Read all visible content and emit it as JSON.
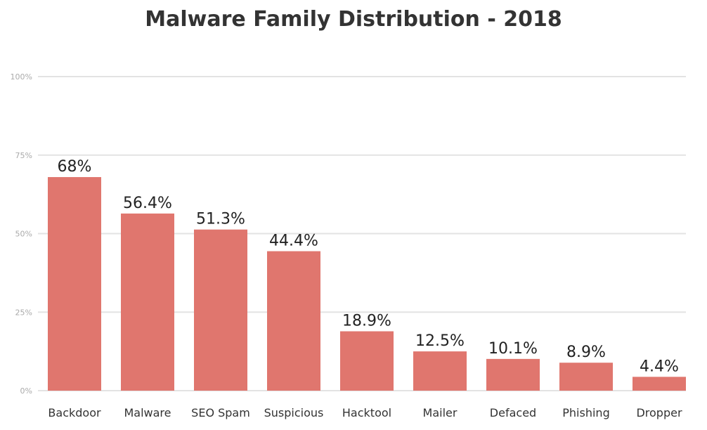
{
  "chart_data": {
    "type": "bar",
    "title": "Malware Family Distribution - 2018",
    "xlabel": "",
    "ylabel": "",
    "categories": [
      "Backdoor",
      "Malware",
      "SEO Spam",
      "Suspicious",
      "Hacktool",
      "Mailer",
      "Defaced",
      "Phishing",
      "Dropper"
    ],
    "values": [
      68,
      56.4,
      51.3,
      44.4,
      18.9,
      12.5,
      10.1,
      8.9,
      4.4
    ],
    "data_labels": [
      "68%",
      "56.4%",
      "51.3%",
      "44.4%",
      "18.9%",
      "12.5%",
      "10.1%",
      "8.9%",
      "4.4%"
    ],
    "ylim": [
      0,
      100
    ],
    "yticks": [
      0,
      25,
      50,
      75,
      100
    ],
    "ytick_labels": [
      "0%",
      "25%",
      "50%",
      "75%",
      "100%"
    ],
    "grid": true,
    "bar_color": "#e0766e",
    "grid_color": "#e3e3e3"
  }
}
